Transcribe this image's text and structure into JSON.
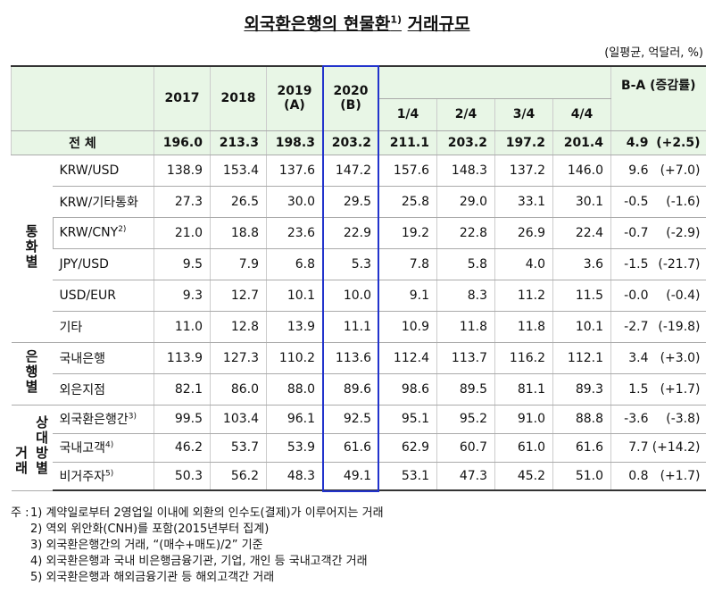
{
  "title": {
    "text": "외국환은행의 현물환",
    "note": "1)",
    "suffix": "거래규모"
  },
  "unit": "(일평균, 억달러, %)",
  "table": {
    "header": {
      "years": [
        {
          "year": "2017"
        },
        {
          "year": "2018"
        },
        {
          "year": "2019",
          "tag": "(A)"
        },
        {
          "year": "2020",
          "tag": "(B)"
        }
      ],
      "quarters": [
        "1/4",
        "2/4",
        "3/4",
        "4/4"
      ],
      "change": "B-A (증감률)"
    },
    "total": {
      "label": "전 체",
      "values": [
        "196.0",
        "213.3",
        "198.3",
        "203.2",
        "211.1",
        "203.2",
        "197.2",
        "201.4"
      ],
      "diff": "4.9",
      "rate": "(+2.5)"
    },
    "groups": [
      {
        "label": [
          "통화별"
        ],
        "rows": [
          {
            "label": "KRW/USD",
            "values": [
              "138.9",
              "153.4",
              "137.6",
              "147.2",
              "157.6",
              "148.3",
              "137.2",
              "146.0"
            ],
            "diff": "9.6",
            "rate": "(+7.0)"
          },
          {
            "label": "KRW/기타통화",
            "values": [
              "27.3",
              "26.5",
              "30.0",
              "29.5",
              "25.8",
              "29.0",
              "33.1",
              "30.1"
            ],
            "diff": "-0.5",
            "rate": "(-1.6)"
          },
          {
            "label": "KRW/CNY",
            "note": "2)",
            "values": [
              "21.0",
              "18.8",
              "23.6",
              "22.9",
              "19.2",
              "22.8",
              "26.9",
              "22.4"
            ],
            "diff": "-0.7",
            "rate": "(-2.9)"
          },
          {
            "label": "JPY/USD",
            "values": [
              "9.5",
              "7.9",
              "6.8",
              "5.3",
              "7.8",
              "5.8",
              "4.0",
              "3.6"
            ],
            "diff": "-1.5",
            "rate": "(-21.7)"
          },
          {
            "label": "USD/EUR",
            "values": [
              "9.3",
              "12.7",
              "10.1",
              "10.0",
              "9.1",
              "8.3",
              "11.2",
              "11.5"
            ],
            "diff": "-0.0",
            "rate": "(-0.4)"
          },
          {
            "label": "기타",
            "values": [
              "11.0",
              "12.8",
              "13.9",
              "11.1",
              "10.9",
              "11.8",
              "11.8",
              "10.1"
            ],
            "diff": "-2.7",
            "rate": "(-19.8)"
          }
        ]
      },
      {
        "label": [
          "은행별"
        ],
        "rows": [
          {
            "label": "국내은행",
            "values": [
              "113.9",
              "127.3",
              "110.2",
              "113.6",
              "112.4",
              "113.7",
              "116.2",
              "112.1"
            ],
            "diff": "3.4",
            "rate": "(+3.0)"
          },
          {
            "label": "외은지점",
            "values": [
              "82.1",
              "86.0",
              "88.0",
              "89.6",
              "98.6",
              "89.5",
              "81.1",
              "89.3"
            ],
            "diff": "1.5",
            "rate": "(+1.7)"
          }
        ]
      },
      {
        "label": [
          "거래",
          "상대방별"
        ],
        "rows": [
          {
            "label": "외국환은행간",
            "note": "3)",
            "values": [
              "99.5",
              "103.4",
              "96.1",
              "92.5",
              "95.1",
              "95.2",
              "91.0",
              "88.8"
            ],
            "diff": "-3.6",
            "rate": "(-3.8)"
          },
          {
            "label": "국내고객",
            "note": "4)",
            "values": [
              "46.2",
              "53.7",
              "53.9",
              "61.6",
              "62.9",
              "60.7",
              "61.0",
              "61.6"
            ],
            "diff": "7.7",
            "rate": "(+14.2)"
          },
          {
            "label": "비거주자",
            "note": "5)",
            "values": [
              "50.3",
              "56.2",
              "48.3",
              "49.1",
              "53.1",
              "47.3",
              "45.2",
              "51.0"
            ],
            "diff": "0.8",
            "rate": "(+1.7)"
          }
        ]
      }
    ]
  },
  "notes": {
    "prefix": "주 :",
    "items": [
      "1) 계약일로부터 2영업일 이내에 외환의 인수도(결제)가 이루어지는 거래",
      "2) 역외 위안화(CNH)를 포함(2015년부터 집계)",
      "3) 외국환은행간의 거래, “(매수+매도)/2” 기준",
      "4) 외국환은행과 국내 비은행금융기관, 기업, 개인 등 국내고객간 거래",
      "5) 외국환은행과 해외금융기관 등 해외고객간 거래"
    ]
  }
}
